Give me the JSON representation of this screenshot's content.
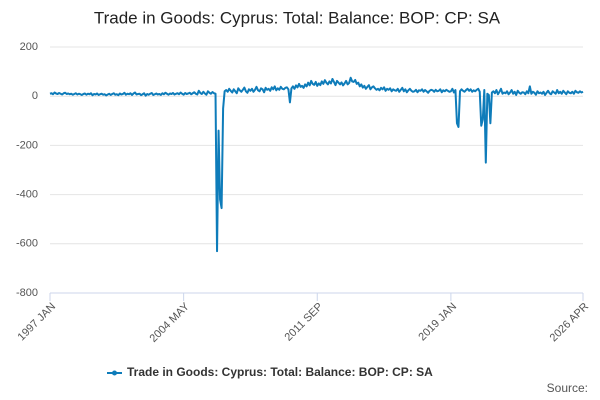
{
  "chart_data": {
    "type": "line",
    "title": "Trade in Goods: Cyprus: Total: Balance: BOP: CP: SA",
    "source": "Source:",
    "categories": [
      "1997 JAN",
      null,
      null,
      null,
      null,
      null,
      null,
      null,
      null,
      null,
      null,
      null,
      null,
      null,
      null,
      null,
      null,
      null,
      null,
      null,
      null,
      null,
      null,
      null,
      null,
      null,
      null,
      null,
      null,
      null,
      null,
      null,
      null,
      null,
      null,
      null,
      null,
      null,
      null,
      null,
      null,
      null,
      null,
      null,
      null,
      null,
      null,
      null,
      null,
      null,
      null,
      null,
      null,
      null,
      null,
      null,
      null,
      null,
      null,
      null,
      null,
      null,
      null,
      null,
      null,
      null,
      null,
      null,
      null,
      null,
      null,
      null,
      null,
      null,
      null,
      null,
      null,
      null,
      null,
      null,
      null,
      null,
      null,
      null,
      null,
      null,
      null,
      null,
      "2004 MAY",
      null,
      null,
      null,
      null,
      null,
      null,
      null,
      null,
      null,
      null,
      null,
      null,
      null,
      null,
      null,
      null,
      null,
      null,
      null,
      null,
      null,
      null,
      null,
      null,
      null,
      null,
      null,
      null,
      null,
      null,
      null,
      null,
      null,
      null,
      null,
      null,
      null,
      null,
      null,
      null,
      null,
      null,
      null,
      null,
      null,
      null,
      null,
      null,
      null,
      null,
      null,
      null,
      null,
      null,
      null,
      null,
      null,
      null,
      null,
      null,
      null,
      null,
      null,
      null,
      null,
      null,
      null,
      null,
      null,
      null,
      null,
      null,
      null,
      null,
      null,
      null,
      null,
      null,
      null,
      null,
      null,
      null,
      null,
      null,
      null,
      null,
      null,
      "2011 SEP",
      null,
      null,
      null,
      null,
      null,
      null,
      null,
      null,
      null,
      null,
      null,
      null,
      null,
      null,
      null,
      null,
      null,
      null,
      null,
      null,
      null,
      null,
      null,
      null,
      null,
      null,
      null,
      null,
      null,
      null,
      null,
      null,
      null,
      null,
      null,
      null,
      null,
      null,
      null,
      null,
      null,
      null,
      null,
      null,
      null,
      null,
      null,
      null,
      null,
      null,
      null,
      null,
      null,
      null,
      null,
      null,
      null,
      null,
      null,
      null,
      null,
      null,
      null,
      null,
      null,
      null,
      null,
      null,
      null,
      null,
      null,
      null,
      null,
      null,
      null,
      null,
      null,
      null,
      null,
      null,
      null,
      null,
      null,
      null,
      null,
      null,
      null,
      "2019 JAN",
      null,
      null,
      null,
      null,
      null,
      null,
      null,
      null,
      null,
      null,
      null,
      null,
      null,
      null,
      null,
      null,
      null,
      null,
      null,
      null,
      null,
      null,
      null,
      null,
      null,
      null,
      null,
      null,
      null,
      null,
      null,
      null,
      null,
      null,
      null,
      null,
      null,
      null,
      null,
      null,
      null,
      null,
      null,
      null,
      null,
      null,
      null,
      null,
      null,
      null,
      null,
      null,
      null,
      null,
      null,
      null,
      null,
      null,
      null,
      null,
      null,
      null,
      null,
      null,
      null,
      null,
      null,
      null,
      null,
      null,
      null,
      null,
      null,
      null,
      null,
      null,
      null,
      null,
      null,
      null,
      null,
      null,
      null,
      null,
      null,
      null,
      "2026 APR"
    ],
    "series": [
      {
        "name": "Trade in Goods: Cyprus: Total: Balance: BOP: CP: SA",
        "color": "#0e7cba",
        "values": [
          10,
          12,
          8,
          15,
          11,
          9,
          13,
          10,
          7,
          12,
          14,
          9,
          11,
          8,
          10,
          6,
          9,
          12,
          7,
          10,
          8,
          5,
          9,
          11,
          6,
          10,
          8,
          12,
          4,
          9,
          7,
          11,
          5,
          8,
          10,
          6,
          8,
          3,
          7,
          10,
          5,
          9,
          12,
          6,
          8,
          4,
          11,
          7,
          9,
          14,
          6,
          10,
          8,
          12,
          5,
          11,
          15,
          7,
          9,
          10,
          4,
          8,
          12,
          2,
          9,
          6,
          10,
          13,
          5,
          8,
          11,
          7,
          9,
          5,
          12,
          8,
          14,
          10,
          6,
          11,
          9,
          13,
          7,
          10,
          12,
          8,
          15,
          10,
          6,
          13,
          9,
          11,
          14,
          8,
          12,
          16,
          10,
          7,
          22,
          13,
          9,
          18,
          11,
          6,
          20,
          14,
          10,
          17,
          12,
          10,
          -630,
          -140,
          -420,
          -455,
          -50,
          20,
          25,
          18,
          30,
          22,
          15,
          28,
          20,
          12,
          32,
          24,
          18,
          26,
          35,
          20,
          14,
          28,
          22,
          30,
          18,
          26,
          38,
          24,
          20,
          32,
          28,
          16,
          34,
          26,
          30,
          22,
          36,
          28,
          40,
          24,
          32,
          26,
          38,
          30,
          28,
          34,
          36,
          28,
          -25,
          32,
          40,
          30,
          44,
          36,
          50,
          38,
          42,
          34,
          48,
          40,
          55,
          44,
          62,
          50,
          46,
          58,
          42,
          52,
          45,
          60,
          50,
          65,
          55,
          48,
          60,
          52,
          70,
          58,
          45,
          62,
          55,
          48,
          56,
          44,
          52,
          62,
          48,
          54,
          75,
          60,
          58,
          66,
          50,
          55,
          40,
          48,
          35,
          42,
          30,
          38,
          45,
          28,
          36,
          40,
          32,
          26,
          30,
          24,
          34,
          28,
          36,
          22,
          30,
          26,
          32,
          20,
          28,
          24,
          22,
          30,
          18,
          26,
          34,
          20,
          28,
          16,
          24,
          30,
          22,
          18,
          20,
          26,
          16,
          24,
          22,
          28,
          18,
          25,
          20,
          14,
          22,
          26,
          24,
          18,
          26,
          20,
          22,
          28,
          16,
          24,
          20,
          26,
          22,
          18,
          20,
          30,
          15,
          25,
          -110,
          -125,
          20,
          28,
          22,
          18,
          25,
          30,
          22,
          28,
          18,
          24,
          20,
          26,
          30,
          18,
          -120,
          -95,
          25,
          -270,
          10,
          5,
          -110,
          15,
          20,
          12,
          25,
          8,
          18,
          30,
          10,
          15,
          12,
          20,
          8,
          15,
          25,
          10,
          18,
          5,
          22,
          14,
          10,
          16,
          15,
          8,
          20,
          12,
          40,
          10,
          18,
          14,
          6,
          20,
          12,
          15,
          10,
          18,
          5,
          14,
          22,
          12,
          8,
          20,
          15,
          10,
          25,
          12,
          18,
          10,
          22,
          15,
          8,
          20,
          14,
          12,
          18,
          10,
          22,
          16,
          14,
          20,
          15,
          18
        ]
      }
    ],
    "ylim": [
      -800,
      200
    ],
    "yticks": [
      200,
      0,
      -200,
      -400,
      -600,
      -800
    ],
    "grid": true,
    "legend": "bottom"
  }
}
